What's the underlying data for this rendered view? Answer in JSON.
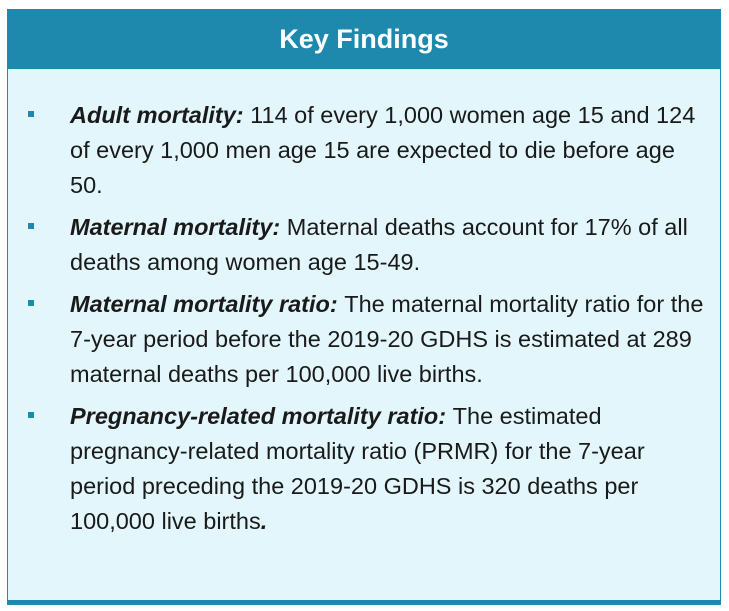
{
  "box": {
    "title": "Key Findings",
    "items": [
      {
        "lead": "Adult mortality:",
        "text": "114 of every 1,000 women age 15 and 124 of every 1,000 men age 15 are expected to die before age 50.",
        "tail": ""
      },
      {
        "lead": "Maternal mortality:",
        "text": "Maternal deaths account for 17% of all deaths among women age 15-49.",
        "tail": ""
      },
      {
        "lead": "Maternal mortality ratio:",
        "text": "The maternal mortality ratio for the 7-year period before the 2019-20 GDHS is estimated at 289 maternal deaths per 100,000 live births.",
        "tail": ""
      },
      {
        "lead": "Pregnancy-related mortality ratio:",
        "text": "The estimated pregnancy-related mortality ratio (PRMR) for the 7-year period preceding the 2019-20 GDHS is 320 deaths per 100,000 live births",
        "tail": "."
      }
    ]
  },
  "colors": {
    "header_bg": "#1e88ad",
    "box_bg": "#e2f6fb",
    "bullet": "#1e88ad"
  }
}
